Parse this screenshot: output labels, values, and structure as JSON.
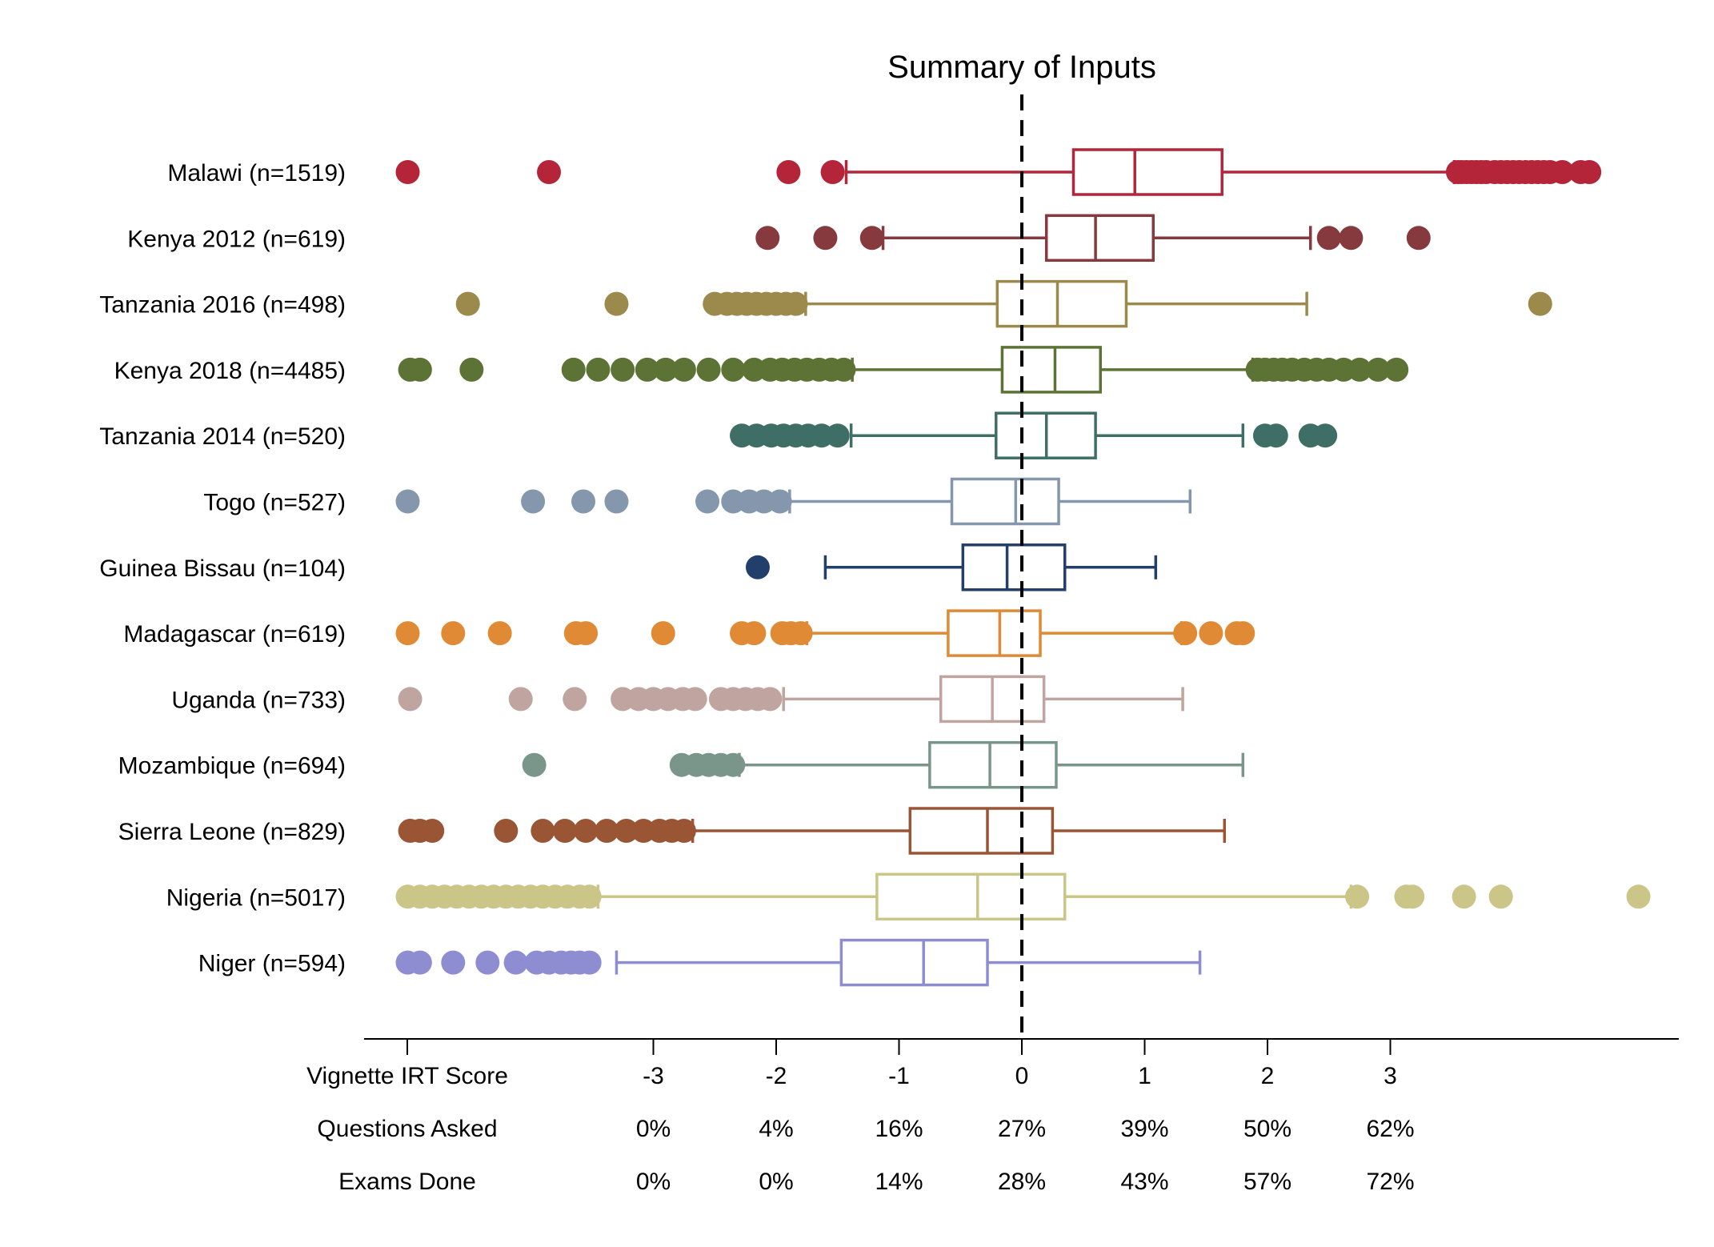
{
  "chart_data": {
    "type": "box",
    "title": "Summary of Inputs",
    "reference_line_x": 0,
    "xlim": [
      -5.0,
      5.4
    ],
    "tick_values": [
      -3,
      -2,
      -1,
      0,
      1,
      2,
      3
    ],
    "axis_rows": [
      {
        "label": "Vignette IRT Score",
        "values": [
          "-3",
          "-2",
          "-1",
          "0",
          "1",
          "2",
          "3"
        ]
      },
      {
        "label": "Questions Asked",
        "values": [
          "0%",
          "4%",
          "16%",
          "27%",
          "39%",
          "50%",
          "62%"
        ]
      },
      {
        "label": "Exams Done",
        "values": [
          "0%",
          "0%",
          "14%",
          "28%",
          "43%",
          "57%",
          "72%"
        ]
      }
    ],
    "series": [
      {
        "label": "Malawi (n=1519)",
        "color": "#B5253A",
        "whisker_low": -1.43,
        "q1": 0.42,
        "median": 0.92,
        "q3": 1.63,
        "whisker_high": 3.52,
        "outliers": [
          -5.0,
          -3.85,
          -1.9,
          -1.54,
          3.55,
          3.58,
          3.62,
          3.66,
          3.7,
          3.74,
          3.78,
          3.85,
          3.9,
          3.95,
          4.0,
          4.05,
          4.1,
          4.15,
          4.2,
          4.25,
          4.3,
          4.4,
          4.55,
          4.62
        ]
      },
      {
        "label": "Kenya 2012 (n=619)",
        "color": "#873A3E",
        "whisker_low": -1.13,
        "q1": 0.2,
        "median": 0.6,
        "q3": 1.07,
        "whisker_high": 2.35,
        "outliers": [
          -2.07,
          -1.6,
          -1.22,
          2.5,
          2.68,
          3.23
        ]
      },
      {
        "label": "Tanzania 2016 (n=498)",
        "color": "#9C8A4C",
        "whisker_low": -1.76,
        "q1": -0.2,
        "median": 0.29,
        "q3": 0.85,
        "whisker_high": 2.32,
        "outliers": [
          -4.51,
          -3.3,
          -2.5,
          -2.4,
          -2.32,
          -2.24,
          -2.16,
          -2.08,
          -2.0,
          -1.92,
          -1.84,
          4.22
        ]
      },
      {
        "label": "Kenya 2018 (n=4485)",
        "color": "#5D7335",
        "whisker_low": -1.38,
        "q1": -0.16,
        "median": 0.27,
        "q3": 0.64,
        "whisker_high": 1.88,
        "outliers": [
          -4.98,
          -4.9,
          -4.48,
          -3.65,
          -3.45,
          -3.25,
          -3.05,
          -2.9,
          -2.75,
          -2.55,
          -2.35,
          -2.18,
          -2.05,
          -1.95,
          -1.85,
          -1.75,
          -1.65,
          -1.55,
          -1.45,
          1.92,
          1.98,
          2.05,
          2.12,
          2.2,
          2.3,
          2.4,
          2.5,
          2.62,
          2.75,
          2.9,
          3.05
        ]
      },
      {
        "label": "Tanzania 2014 (n=520)",
        "color": "#3E6E66",
        "whisker_low": -1.39,
        "q1": -0.21,
        "median": 0.2,
        "q3": 0.6,
        "whisker_high": 1.8,
        "outliers": [
          -2.28,
          -2.16,
          -2.04,
          -1.94,
          -1.84,
          -1.74,
          -1.63,
          -1.5,
          1.98,
          2.07,
          2.35,
          2.47
        ]
      },
      {
        "label": "Togo (n=527)",
        "color": "#8497AD",
        "whisker_low": -1.89,
        "q1": -0.57,
        "median": -0.05,
        "q3": 0.3,
        "whisker_high": 1.37,
        "outliers": [
          -5.0,
          -3.98,
          -3.57,
          -3.3,
          -2.56,
          -2.35,
          -2.22,
          -2.1,
          -1.97
        ]
      },
      {
        "label": "Guinea Bissau (n=104)",
        "color": "#223F6B",
        "whisker_low": -1.6,
        "q1": -0.48,
        "median": -0.12,
        "q3": 0.35,
        "whisker_high": 1.09,
        "outliers": [
          -2.15
        ]
      },
      {
        "label": "Madagascar (n=619)",
        "color": "#E08A35",
        "whisker_low": -1.75,
        "q1": -0.6,
        "median": -0.18,
        "q3": 0.15,
        "whisker_high": 1.3,
        "outliers": [
          -5.0,
          -4.63,
          -4.25,
          -3.63,
          -3.55,
          -2.92,
          -2.28,
          -2.18,
          -1.95,
          -1.88,
          -1.8,
          1.33,
          1.54,
          1.75,
          1.8
        ]
      },
      {
        "label": "Uganda (n=733)",
        "color": "#BFA4A0",
        "whisker_low": -1.94,
        "q1": -0.66,
        "median": -0.24,
        "q3": 0.18,
        "whisker_high": 1.31,
        "outliers": [
          -4.98,
          -4.08,
          -3.64,
          -3.25,
          -3.12,
          -3.0,
          -2.88,
          -2.76,
          -2.66,
          -2.45,
          -2.35,
          -2.25,
          -2.15,
          -2.05
        ]
      },
      {
        "label": "Mozambique (n=694)",
        "color": "#7A958A",
        "whisker_low": -2.3,
        "q1": -0.75,
        "median": -0.26,
        "q3": 0.28,
        "whisker_high": 1.8,
        "outliers": [
          -3.97,
          -2.77,
          -2.65,
          -2.55,
          -2.45,
          -2.35
        ]
      },
      {
        "label": "Sierra Leone (n=829)",
        "color": "#9A5535",
        "whisker_low": -2.68,
        "q1": -0.91,
        "median": -0.28,
        "q3": 0.25,
        "whisker_high": 1.65,
        "outliers": [
          -4.98,
          -4.9,
          -4.8,
          -4.2,
          -3.9,
          -3.72,
          -3.55,
          -3.38,
          -3.22,
          -3.08,
          -2.95,
          -2.85,
          -2.75
        ]
      },
      {
        "label": "Nigeria (n=5017)",
        "color": "#CCC588",
        "whisker_low": -3.45,
        "q1": -1.18,
        "median": -0.36,
        "q3": 0.35,
        "whisker_high": 2.68,
        "outliers": [
          -5.0,
          -4.9,
          -4.8,
          -4.7,
          -4.6,
          -4.5,
          -4.4,
          -4.3,
          -4.2,
          -4.1,
          -4.0,
          -3.9,
          -3.8,
          -3.7,
          -3.6,
          -3.52,
          2.73,
          3.13,
          3.18,
          3.6,
          3.9,
          5.02
        ]
      },
      {
        "label": "Niger (n=594)",
        "color": "#8E8DD1",
        "whisker_low": -3.3,
        "q1": -1.47,
        "median": -0.8,
        "q3": -0.28,
        "whisker_high": 1.45,
        "outliers": [
          -5.0,
          -4.9,
          -4.63,
          -4.35,
          -4.12,
          -3.95,
          -3.85,
          -3.75,
          -3.67,
          -3.6,
          -3.52
        ]
      }
    ]
  }
}
